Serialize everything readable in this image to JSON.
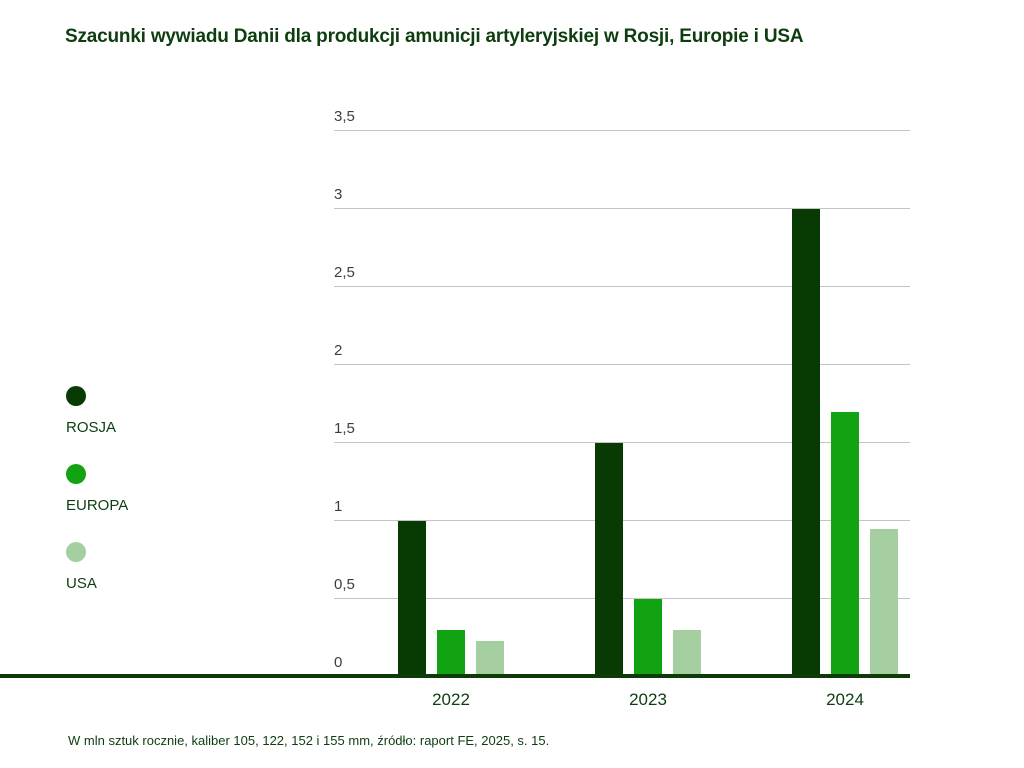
{
  "title": "Szacunki wywiadu Danii dla produkcji amunicji artyleryjskiej w Rosji, Europie i USA",
  "source_note": "W mln sztuk rocznie, kaliber 105, 122, 152 i 155 mm, źródło: raport FE, 2025, s. 15.",
  "colors": {
    "rosja": "#083a04",
    "europa": "#12a312",
    "usa": "#a5cfa1",
    "axis": "#0d3b08",
    "grid": "#c4c4c4",
    "text_green": "#0e3d10",
    "tick_text": "#3d3d3d"
  },
  "legend": {
    "items": [
      {
        "label": "ROSJA",
        "series": "rosja"
      },
      {
        "label": "EUROPA",
        "series": "europa"
      },
      {
        "label": "USA",
        "series": "usa"
      }
    ]
  },
  "chart_data": {
    "type": "bar",
    "title": "Szacunki wywiadu Danii dla produkcji amunicji artyleryjskiej w Rosji, Europie i USA",
    "categories": [
      "2022",
      "2023",
      "2024"
    ],
    "series": [
      {
        "name": "ROSJA",
        "color": "#083a04",
        "values": [
          1.0,
          1.5,
          3.0
        ]
      },
      {
        "name": "EUROPA",
        "color": "#12a312",
        "values": [
          0.3,
          0.5,
          1.7
        ]
      },
      {
        "name": "USA",
        "color": "#a5cfa1",
        "values": [
          0.23,
          0.3,
          0.95
        ]
      }
    ],
    "xlabel": "",
    "ylabel": "",
    "ylim": [
      0,
      3.5
    ],
    "yticks": [
      {
        "value": 0,
        "label": "0"
      },
      {
        "value": 0.5,
        "label": "0,5"
      },
      {
        "value": 1,
        "label": "1"
      },
      {
        "value": 1.5,
        "label": "1,5"
      },
      {
        "value": 2,
        "label": "2"
      },
      {
        "value": 2.5,
        "label": "2,5"
      },
      {
        "value": 3,
        "label": "3"
      },
      {
        "value": 3.5,
        "label": "3,5"
      }
    ],
    "grid": true,
    "legend_position": "left"
  }
}
